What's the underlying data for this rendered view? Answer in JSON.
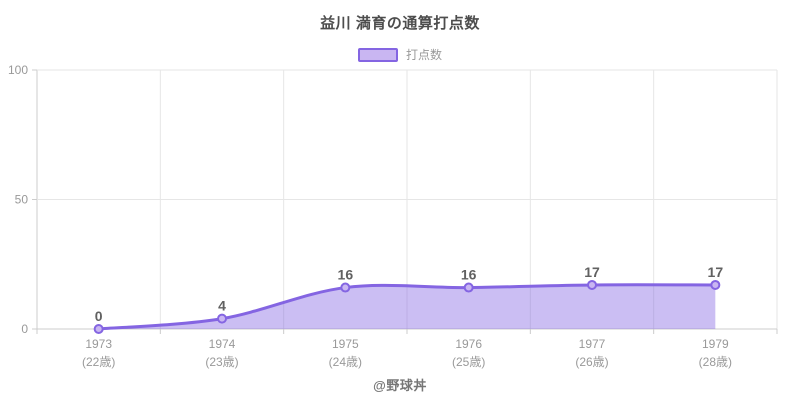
{
  "title": "益川 満育の通算打点数",
  "legend": {
    "series_label": "打点数"
  },
  "footer": "@野球丼",
  "colors": {
    "line": "#8465e2",
    "area_fill": "rgba(132,101,226,0.42)",
    "point_fill": "#c9b6f2",
    "grid": "#e6e6e6",
    "axis_line": "#cccccc",
    "axis_text": "#999999",
    "value_label": "#616161"
  },
  "chart_data": {
    "type": "area",
    "title": "益川 満育の通算打点数",
    "categories": [
      "1973",
      "1974",
      "1975",
      "1976",
      "1977",
      "1979"
    ],
    "category_sublabels": [
      "(22歳)",
      "(23歳)",
      "(24歳)",
      "(25歳)",
      "(26歳)",
      "(28歳)"
    ],
    "series": [
      {
        "name": "打点数",
        "values": [
          0,
          4,
          16,
          16,
          17,
          17
        ]
      }
    ],
    "ylabel": "",
    "xlabel": "",
    "ylim": [
      0,
      100
    ],
    "yticks": [
      0,
      50,
      100
    ],
    "grid": true,
    "smooth": true,
    "legend_position": "top-center",
    "value_labels_shown": true
  }
}
